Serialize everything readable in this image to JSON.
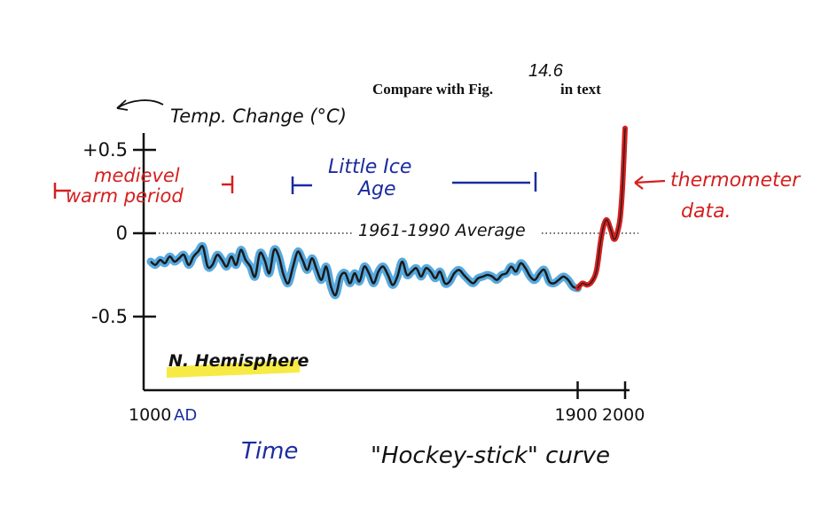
{
  "chart_data": {
    "type": "line",
    "title": "Compare with Fig.",
    "title_figure_number": "14.6",
    "title_suffix": "in text",
    "ylabel": "Temp. Change (°C)",
    "xlabel": "Time",
    "subtitle": "\"Hockey-stick\" curve",
    "panel_label": "N. Hemisphere",
    "xlim": [
      1000,
      2000
    ],
    "ylim": [
      -0.9,
      0.6
    ],
    "x_ticks": [
      {
        "value": 1000,
        "label": "1000"
      },
      {
        "value": 1900,
        "label": "1900"
      },
      {
        "value": 2000,
        "label": "2000"
      }
    ],
    "x_tick_suffix": "AD",
    "y_ticks": [
      {
        "value": 0.5,
        "label": "+0.5"
      },
      {
        "value": 0,
        "label": "0"
      },
      {
        "value": -0.5,
        "label": "-0.5"
      }
    ],
    "reference_line": {
      "y": 0,
      "label": "1961-1990 Average"
    },
    "annotations": [
      {
        "text_line1": "medievel",
        "text_line2": "warm period",
        "x_start": 1000,
        "x_end": 1100,
        "color": "#d42020"
      },
      {
        "text_line1": "Little Ice",
        "text_line2": "Age",
        "x_start": 1200,
        "x_end": 1900,
        "color": "#1a2ca0"
      },
      {
        "text_line1": "thermometer",
        "text_line2": "data.",
        "color": "#d42020"
      }
    ],
    "series": [
      {
        "color": "#1a1a1a",
        "x": [
          1000,
          1010,
          1020,
          1030,
          1040,
          1050,
          1060,
          1070,
          1080,
          1090,
          1100,
          1110,
          1120,
          1130,
          1140,
          1150,
          1160,
          1170,
          1180,
          1190,
          1200,
          1210,
          1220,
          1230,
          1240,
          1250,
          1260,
          1270,
          1280,
          1290,
          1300,
          1310,
          1320,
          1330,
          1340,
          1350,
          1360,
          1370,
          1380,
          1390,
          1400,
          1410,
          1420,
          1430,
          1440,
          1450,
          1460,
          1470,
          1480,
          1490,
          1500,
          1510,
          1520,
          1530,
          1540,
          1550,
          1560,
          1570,
          1580,
          1590,
          1600,
          1610,
          1620,
          1630,
          1640,
          1650,
          1660,
          1670,
          1680,
          1690,
          1700,
          1710,
          1720,
          1730,
          1740,
          1750,
          1760,
          1770,
          1780,
          1790,
          1800,
          1810,
          1820,
          1830,
          1840,
          1850,
          1860,
          1870,
          1880,
          1890,
          1900
        ],
        "values": [
          -0.17,
          -0.19,
          -0.16,
          -0.18,
          -0.14,
          -0.17,
          -0.15,
          -0.13,
          -0.19,
          -0.14,
          -0.11,
          -0.08,
          -0.2,
          -0.19,
          -0.13,
          -0.16,
          -0.2,
          -0.14,
          -0.19,
          -0.1,
          -0.16,
          -0.2,
          -0.26,
          -0.12,
          -0.16,
          -0.24,
          -0.1,
          -0.14,
          -0.25,
          -0.3,
          -0.2,
          -0.11,
          -0.16,
          -0.22,
          -0.15,
          -0.22,
          -0.28,
          -0.2,
          -0.32,
          -0.37,
          -0.26,
          -0.24,
          -0.3,
          -0.24,
          -0.29,
          -0.2,
          -0.24,
          -0.3,
          -0.23,
          -0.2,
          -0.25,
          -0.31,
          -0.26,
          -0.17,
          -0.25,
          -0.23,
          -0.21,
          -0.26,
          -0.21,
          -0.23,
          -0.27,
          -0.23,
          -0.3,
          -0.29,
          -0.24,
          -0.22,
          -0.25,
          -0.28,
          -0.3,
          -0.27,
          -0.26,
          -0.25,
          -0.26,
          -0.28,
          -0.25,
          -0.24,
          -0.2,
          -0.23,
          -0.18,
          -0.21,
          -0.26,
          -0.28,
          -0.24,
          -0.22,
          -0.29,
          -0.3,
          -0.28,
          -0.26,
          -0.28,
          -0.32,
          -0.33
        ]
      },
      {
        "color": "#d42020",
        "x": [
          1900,
          1910,
          1920,
          1930,
          1940,
          1950,
          1960,
          1970,
          1975,
          1980,
          1985,
          1990,
          1995,
          2000
        ],
        "values": [
          -0.33,
          -0.3,
          -0.31,
          -0.29,
          -0.22,
          -0.02,
          0.08,
          0.02,
          -0.03,
          -0.03,
          0.02,
          0.1,
          0.3,
          0.63
        ]
      }
    ]
  }
}
